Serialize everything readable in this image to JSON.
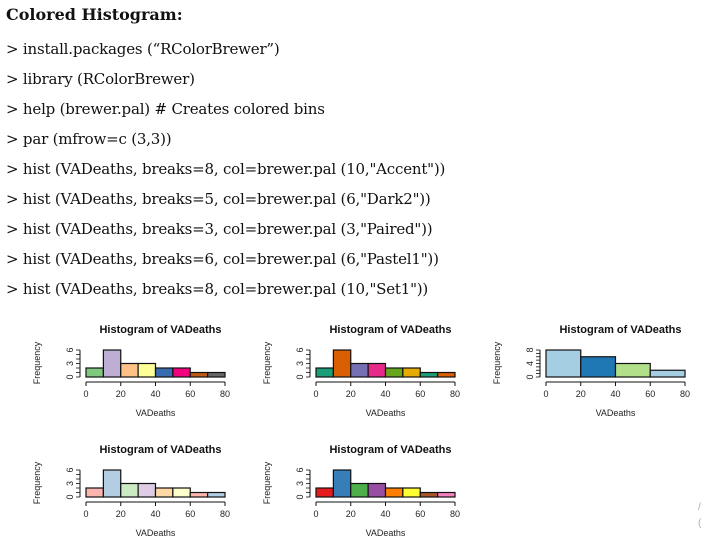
{
  "document": {
    "heading": "Colored Histogram:",
    "commands": [
      "> install.packages (“RColorBrewer”)",
      "> library (RColorBrewer)",
      "> help (brewer.pal) # Creates colored bins",
      "> par (mfrow=c (3,3))",
      "> hist (VADeaths, breaks=8, col=brewer.pal (10,\"Accent\"))",
      "> hist (VADeaths, breaks=5, col=brewer.pal (6,\"Dark2\"))",
      "> hist (VADeaths, breaks=3, col=brewer.pal (3,\"Paired\"))",
      "> hist (VADeaths, breaks=6, col=brewer.pal (6,\"Pastel1\"))",
      "> hist (VADeaths, breaks=8, col=brewer.pal (10,\"Set1\"))"
    ],
    "edge_marks": [
      "/",
      "("
    ]
  },
  "chart_data": [
    {
      "type": "bar",
      "title": "Histogram of VADeaths",
      "xlabel": "VADeaths",
      "ylabel": "Frequency",
      "bin_edges": [
        0,
        10,
        20,
        30,
        40,
        50,
        60,
        70,
        80
      ],
      "values": [
        2,
        6,
        3,
        3,
        2,
        2,
        1,
        1
      ],
      "xticks": [
        "0",
        "20",
        "40",
        "60",
        "80"
      ],
      "yticks": [
        "0",
        "3",
        "6"
      ],
      "ylim": [
        0,
        6
      ],
      "colors": [
        "#7FC97F",
        "#BEAED4",
        "#FDC086",
        "#FFFF99",
        "#386CB0",
        "#F0027F",
        "#BF5B17",
        "#666666"
      ]
    },
    {
      "type": "bar",
      "title": "Histogram of VADeaths",
      "xlabel": "VADeaths",
      "ylabel": "Frequency",
      "bin_edges": [
        0,
        10,
        20,
        30,
        40,
        50,
        60,
        70,
        80
      ],
      "values": [
        2,
        6,
        3,
        3,
        2,
        2,
        1,
        1
      ],
      "xticks": [
        "0",
        "20",
        "40",
        "60",
        "80"
      ],
      "yticks": [
        "0",
        "3",
        "6"
      ],
      "ylim": [
        0,
        6
      ],
      "colors": [
        "#1B9E77",
        "#D95F02",
        "#7570B3",
        "#E7298A",
        "#66A61E",
        "#E6AB02",
        "#1B9E77",
        "#D95F02"
      ]
    },
    {
      "type": "bar",
      "title": "Histogram of VADeaths",
      "xlabel": "VADeaths",
      "ylabel": "Frequency",
      "bin_edges": [
        0,
        20,
        40,
        60,
        80
      ],
      "values": [
        8,
        6,
        4,
        2
      ],
      "xticks": [
        "0",
        "20",
        "40",
        "60",
        "80"
      ],
      "yticks": [
        "0",
        "4",
        "8"
      ],
      "ylim": [
        0,
        8
      ],
      "colors": [
        "#A6CEE3",
        "#1F78B4",
        "#B2DF8A",
        "#A6CEE3"
      ]
    },
    {
      "type": "bar",
      "title": "Histogram of VADeaths",
      "xlabel": "VADeaths",
      "ylabel": "Frequency",
      "bin_edges": [
        0,
        10,
        20,
        30,
        40,
        50,
        60,
        70,
        80
      ],
      "values": [
        2,
        6,
        3,
        3,
        2,
        2,
        1,
        1
      ],
      "xticks": [
        "0",
        "20",
        "40",
        "60",
        "80"
      ],
      "yticks": [
        "0",
        "3",
        "6"
      ],
      "ylim": [
        0,
        6
      ],
      "colors": [
        "#FBB4AE",
        "#B3CDE3",
        "#CCEBC5",
        "#DECBE4",
        "#FED9A6",
        "#FFFFCC",
        "#FBB4AE",
        "#B3CDE3"
      ]
    },
    {
      "type": "bar",
      "title": "Histogram of VADeaths",
      "xlabel": "VADeaths",
      "ylabel": "Frequency",
      "bin_edges": [
        0,
        10,
        20,
        30,
        40,
        50,
        60,
        70,
        80
      ],
      "values": [
        2,
        6,
        3,
        3,
        2,
        2,
        1,
        1
      ],
      "xticks": [
        "0",
        "20",
        "40",
        "60",
        "80"
      ],
      "yticks": [
        "0",
        "3",
        "6"
      ],
      "ylim": [
        0,
        6
      ],
      "colors": [
        "#E41A1C",
        "#377EB8",
        "#4DAF4A",
        "#984EA3",
        "#FF7F00",
        "#FFFF33",
        "#A65628",
        "#F781BF"
      ]
    }
  ]
}
